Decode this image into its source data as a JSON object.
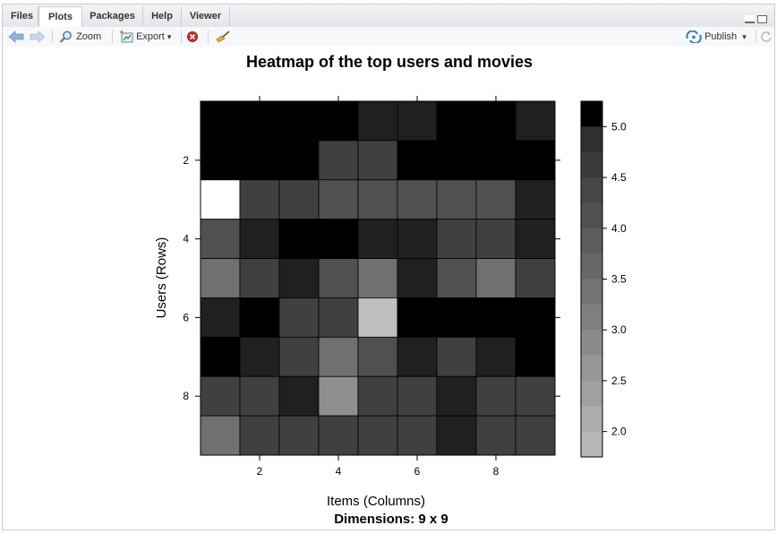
{
  "tabs": [
    {
      "label": "Files"
    },
    {
      "label": "Plots",
      "active": true
    },
    {
      "label": "Packages"
    },
    {
      "label": "Help"
    },
    {
      "label": "Viewer"
    }
  ],
  "toolbar": {
    "zoom_label": "Zoom",
    "export_label": "Export",
    "export_caret": "▾",
    "publish_label": "Publish",
    "publish_caret": "▾"
  },
  "icons": {
    "back": "arrow-left-icon",
    "forward": "arrow-right-icon",
    "zoom": "zoom-icon",
    "export": "export-icon",
    "remove": "remove-plot-icon",
    "clear": "broom-icon",
    "publish": "publish-icon",
    "refresh": "refresh-icon"
  },
  "chart_data": {
    "type": "heatmap",
    "title": "Heatmap of the top users and movies",
    "xlabel": "Items (Columns)",
    "ylabel": "Users (Rows)",
    "subtitle": "Dimensions: 9 x 9",
    "x_ticks": [
      "2",
      "4",
      "6",
      "8"
    ],
    "y_ticks": [
      "2",
      "4",
      "6",
      "8"
    ],
    "colorbar_ticks": [
      "5.0",
      "4.5",
      "4.0",
      "3.5",
      "3.0",
      "2.5",
      "2.0"
    ],
    "colorbar_range": [
      1.75,
      5.25
    ],
    "colorbar_steps": 14,
    "matrix": [
      [
        5.0,
        5.0,
        5.0,
        5.0,
        4.5,
        4.5,
        5.0,
        5.0,
        4.5
      ],
      [
        5.0,
        5.0,
        5.0,
        4.0,
        4.0,
        5.0,
        5.0,
        5.0,
        5.0
      ],
      [
        1.0,
        4.0,
        4.0,
        3.75,
        3.75,
        3.75,
        3.75,
        3.75,
        4.5
      ],
      [
        3.75,
        4.5,
        5.0,
        5.0,
        4.5,
        4.5,
        4.0,
        4.0,
        4.5
      ],
      [
        3.25,
        4.0,
        4.5,
        3.75,
        3.25,
        4.5,
        3.75,
        3.25,
        4.0
      ],
      [
        4.5,
        5.0,
        4.0,
        4.0,
        2.0,
        5.0,
        5.0,
        5.0,
        5.0
      ],
      [
        5.0,
        4.5,
        4.0,
        3.25,
        3.75,
        4.5,
        4.0,
        4.5,
        5.0
      ],
      [
        4.0,
        4.0,
        4.5,
        2.75,
        4.0,
        4.0,
        4.5,
        4.0,
        4.0
      ],
      [
        3.25,
        4.0,
        4.0,
        4.0,
        4.0,
        4.0,
        4.5,
        4.0,
        4.0
      ]
    ]
  }
}
